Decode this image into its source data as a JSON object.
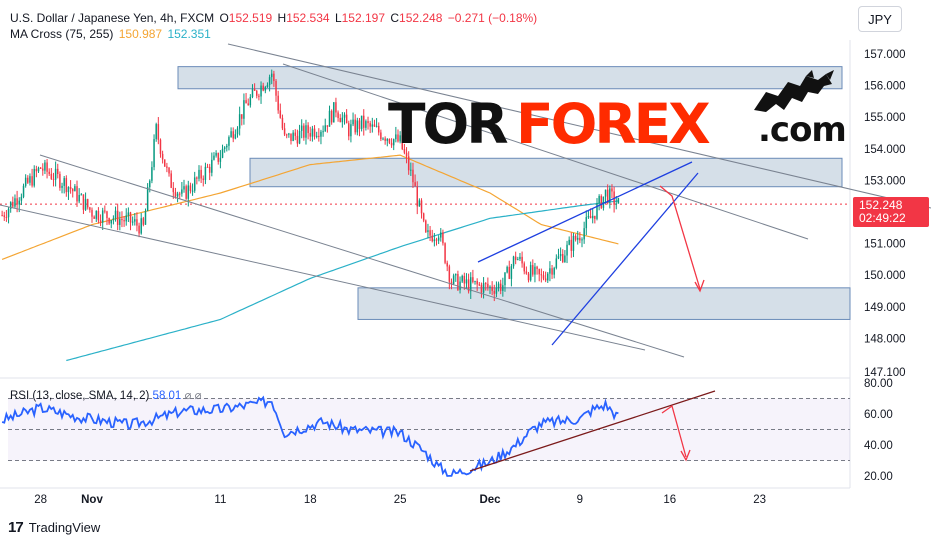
{
  "legend": {
    "symbol": "U.S. Dollar / Japanese Yen, 4h, FXCM",
    "o_label": "O",
    "o": "152.519",
    "h_label": "H",
    "h": "152.534",
    "l_label": "L",
    "l": "152.197",
    "c_label": "C",
    "c": "152.248",
    "change": "−0.271 (−0.18%)",
    "ma_label": "MA Cross (75, 255)",
    "ma_fast": "150.987",
    "ma_slow": "152.351",
    "rsi_label": "RSI (13, close, SMA, 14, 2)",
    "rsi_value": "58.01",
    "rsi_na": "⌀ ⌀"
  },
  "currency_button": "JPY",
  "price_tag": {
    "price": "152.248",
    "countdown": "02:49:22"
  },
  "watermark": {
    "tor": "TOR",
    "forex": "FOREX",
    "com": ".com",
    "icon": "bull-bear-icon"
  },
  "branding": {
    "logo_icon": "tradingview-logo-icon",
    "name": "TradingView"
  },
  "colors": {
    "candle_up": "#089981",
    "candle_down": "#f23645",
    "ma_fast": "#f4a533",
    "ma_slow": "#2bb1c8",
    "rsi_line": "#2962ff",
    "zone_fill": "#b2c4d6",
    "wedge": "#1e3fe0",
    "arrow": "#f23645"
  },
  "chart_data": [
    {
      "type": "candlestick",
      "title": "U.S. Dollar / Japanese Yen, 4h, FXCM",
      "x_ticks": [
        "28",
        "Nov",
        "11",
        "18",
        "25",
        "Dec",
        "9",
        "16",
        "23"
      ],
      "y_ticks": [
        "157.000",
        "156.000",
        "155.000",
        "154.000",
        "153.000",
        "151.000",
        "150.000",
        "149.000",
        "148.000",
        "147.100"
      ],
      "y_range": [
        147.0,
        157.5
      ],
      "ohlc_current": {
        "open": 152.519,
        "high": 152.534,
        "low": 152.197,
        "close": 152.248
      },
      "close_path_approx": [
        [
          "Oct 25",
          151.9
        ],
        [
          "Oct 28",
          153.4
        ],
        [
          "Oct 30",
          152.9
        ],
        [
          "Nov 1",
          152.0
        ],
        [
          "Nov 4",
          151.7
        ],
        [
          "Nov 5",
          151.5
        ],
        [
          "Nov 6",
          154.6
        ],
        [
          "Nov 7",
          153.0
        ],
        [
          "Nov 8",
          152.5
        ],
        [
          "Nov 11",
          153.8
        ],
        [
          "Nov 13",
          155.4
        ],
        [
          "Nov 15",
          156.4
        ],
        [
          "Nov 16",
          154.3
        ],
        [
          "Nov 19",
          154.7
        ],
        [
          "Nov 20",
          155.3
        ],
        [
          "Nov 21",
          154.6
        ],
        [
          "Nov 22",
          154.8
        ],
        [
          "Nov 25",
          154.2
        ],
        [
          "Nov 26",
          153.0
        ],
        [
          "Nov 27",
          151.2
        ],
        [
          "Nov 28",
          151.4
        ],
        [
          "Nov 29",
          149.8
        ],
        [
          "Dec 2",
          149.6
        ],
        [
          "Dec 3",
          149.7
        ],
        [
          "Dec 4",
          150.6
        ],
        [
          "Dec 5",
          150.1
        ],
        [
          "Dec 6",
          149.9
        ],
        [
          "Dec 9",
          151.3
        ],
        [
          "Dec 10",
          151.9
        ],
        [
          "Dec 11",
          152.6
        ],
        [
          "Dec 12",
          152.25
        ]
      ],
      "ma_fast_path_approx": [
        [
          "Oct 25",
          150.5
        ],
        [
          "Nov 1",
          151.6
        ],
        [
          "Nov 11",
          152.6
        ],
        [
          "Nov 18",
          153.5
        ],
        [
          "Nov 25",
          153.8
        ],
        [
          "Dec 2",
          152.6
        ],
        [
          "Dec 6",
          151.6
        ],
        [
          "Dec 12",
          150.99
        ]
      ],
      "ma_slow_path_approx": [
        [
          "Oct 30",
          147.3
        ],
        [
          "Nov 11",
          148.6
        ],
        [
          "Nov 18",
          149.9
        ],
        [
          "Nov 25",
          150.9
        ],
        [
          "Dec 2",
          151.8
        ],
        [
          "Dec 9",
          152.2
        ],
        [
          "Dec 12",
          152.35
        ]
      ],
      "zones": [
        {
          "from": 155.9,
          "to": 156.6
        },
        {
          "from": 152.8,
          "to": 153.7
        },
        {
          "from": 148.6,
          "to": 149.6
        }
      ]
    },
    {
      "type": "line",
      "title": "RSI (13, close, SMA, 14, 2)",
      "y_ticks": [
        "80.00",
        "60.00",
        "40.00",
        "20.00"
      ],
      "y_range": [
        18,
        82
      ],
      "bands": [
        70,
        50,
        30
      ],
      "rsi_path_approx": [
        [
          "Oct 25",
          56
        ],
        [
          "Oct 28",
          64
        ],
        [
          "Oct 31",
          58
        ],
        [
          "Nov 4",
          53
        ],
        [
          "Nov 6",
          57
        ],
        [
          "Nov 8",
          62
        ],
        [
          "Nov 11",
          63
        ],
        [
          "Nov 14",
          67
        ],
        [
          "Nov 15",
          69
        ],
        [
          "Nov 16",
          48
        ],
        [
          "Nov 19",
          55
        ],
        [
          "Nov 21",
          50
        ],
        [
          "Nov 25",
          48
        ],
        [
          "Nov 27",
          35
        ],
        [
          "Nov 28",
          26
        ],
        [
          "Nov 29",
          21
        ],
        [
          "Dec 2",
          29
        ],
        [
          "Dec 4",
          40
        ],
        [
          "Dec 5",
          48
        ],
        [
          "Dec 6",
          54
        ],
        [
          "Dec 9",
          57
        ],
        [
          "Dec 10",
          63
        ],
        [
          "Dec 11",
          66
        ],
        [
          "Dec 12",
          58.01
        ]
      ]
    }
  ]
}
